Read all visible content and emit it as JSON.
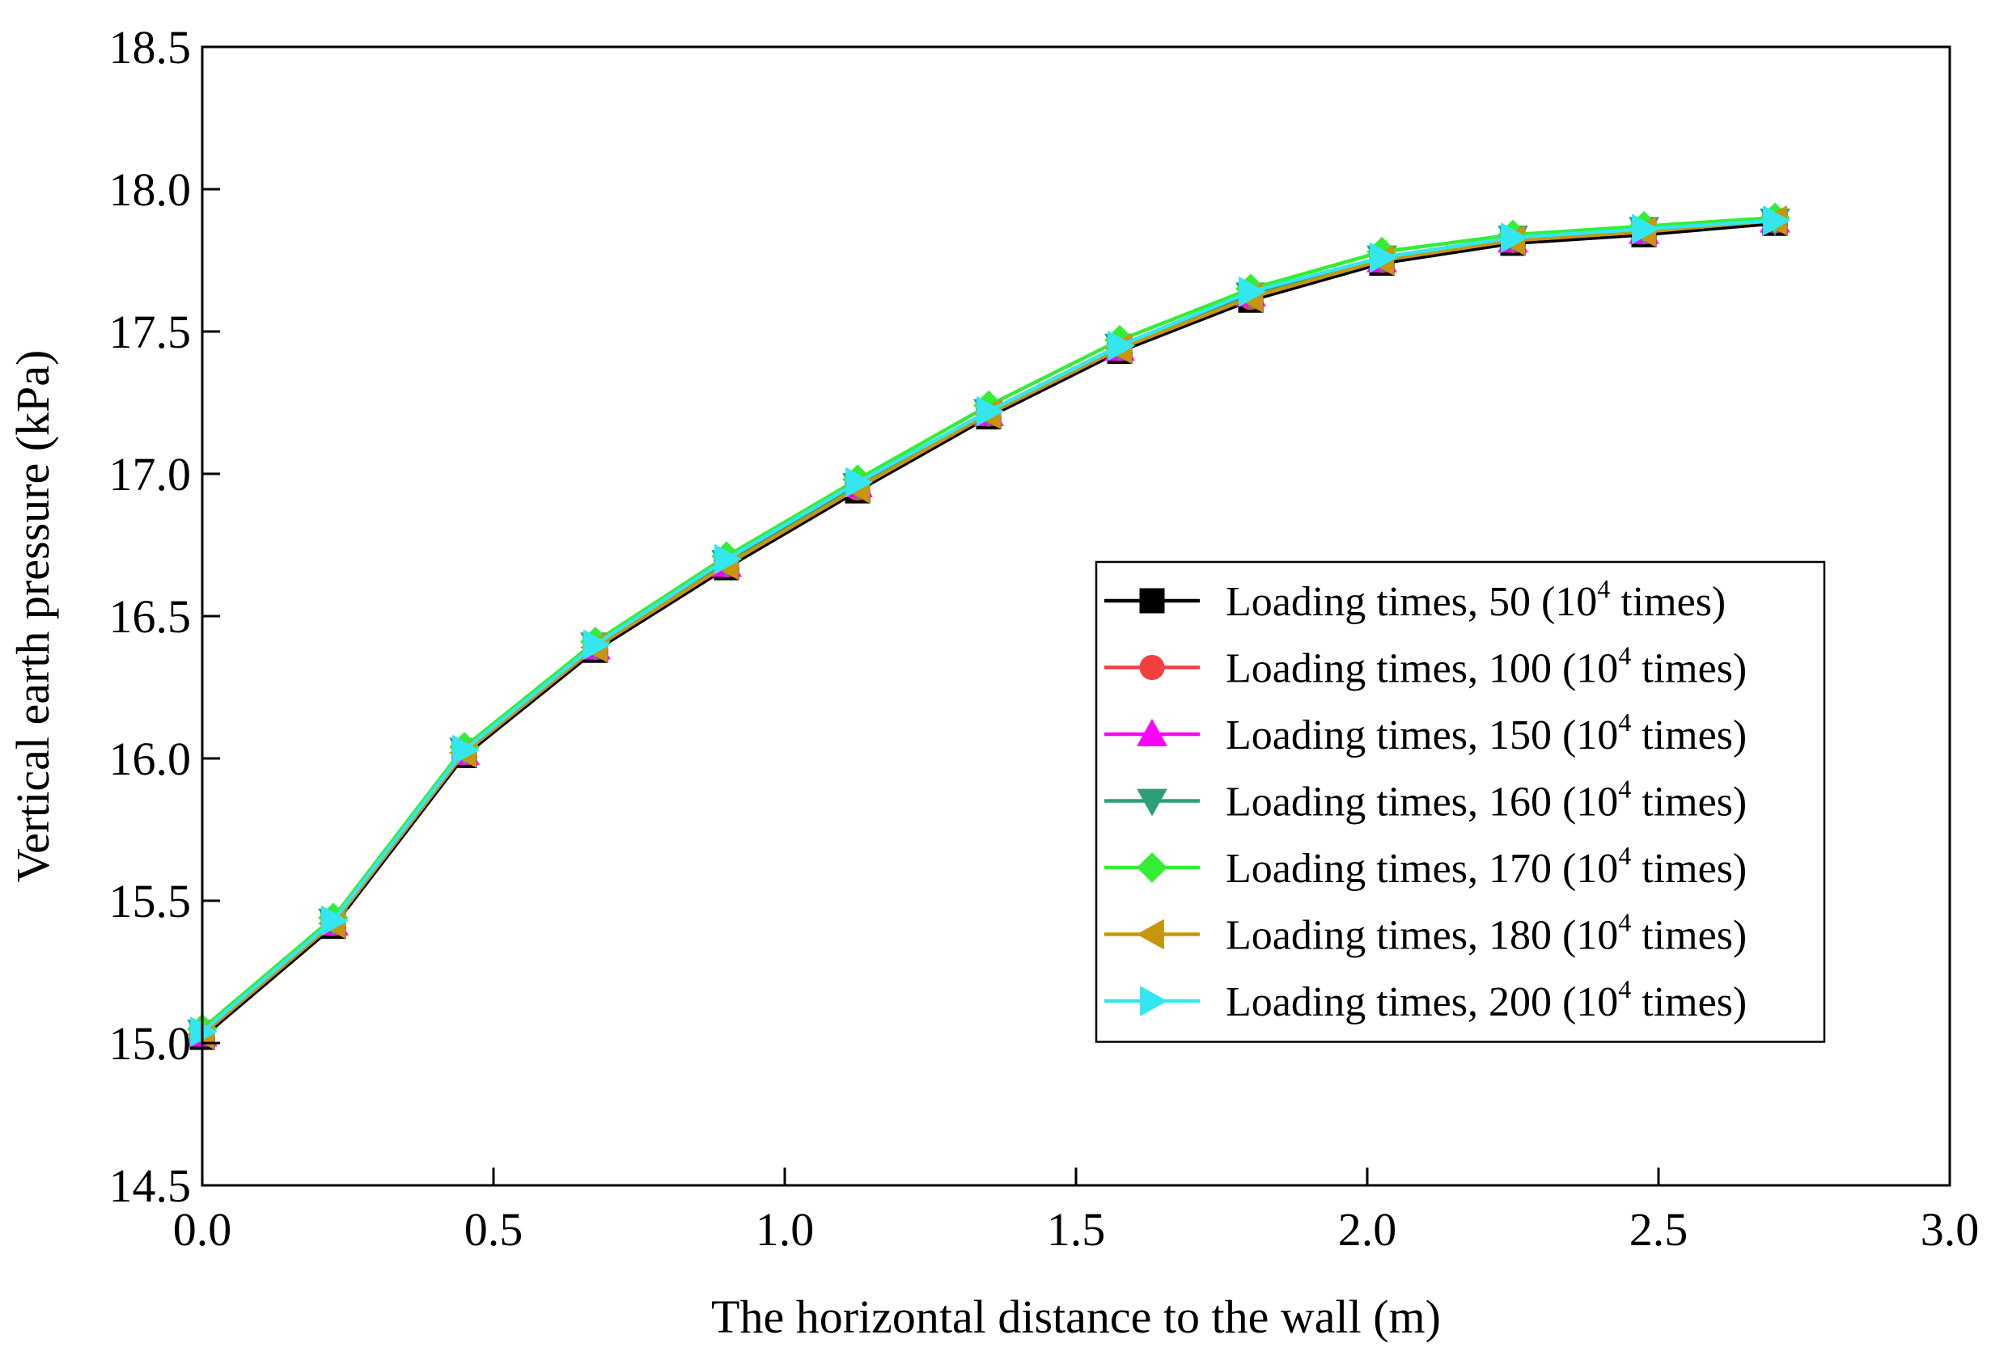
{
  "chart_data": {
    "type": "line",
    "title": "",
    "xlabel": "The horizontal distance to the wall (m)",
    "ylabel": "Vertical earth pressure (kPa)",
    "xlim": [
      0.0,
      3.0
    ],
    "ylim": [
      14.5,
      18.5
    ],
    "xticks": [
      "0.0",
      "0.5",
      "1.0",
      "1.5",
      "2.0",
      "2.5",
      "3.0"
    ],
    "yticks": [
      "14.5",
      "15.0",
      "15.5",
      "16.0",
      "16.5",
      "17.0",
      "17.5",
      "18.0",
      "18.5"
    ],
    "legend_position": "right-middle",
    "x": [
      0.0,
      0.225,
      0.45,
      0.675,
      0.9,
      1.125,
      1.35,
      1.575,
      1.8,
      2.025,
      2.25,
      2.475,
      2.7
    ],
    "series": [
      {
        "name": "Loading times, 50 (10",
        "name_sup": "4",
        "name_suffix": " times)",
        "color": "#000000",
        "marker": "square",
        "values": [
          15.02,
          15.41,
          16.01,
          16.38,
          16.67,
          16.94,
          17.2,
          17.43,
          17.61,
          17.74,
          17.81,
          17.84,
          17.88
        ]
      },
      {
        "name": "Loading times, 100 (10",
        "name_sup": "4",
        "name_suffix": " times)",
        "color": "#f04040",
        "marker": "circle",
        "values": [
          15.03,
          15.42,
          16.02,
          16.39,
          16.68,
          16.95,
          17.21,
          17.44,
          17.62,
          17.75,
          17.82,
          17.85,
          17.89
        ]
      },
      {
        "name": "Loading times, 150 (10",
        "name_sup": "4",
        "name_suffix": " times)",
        "color": "#ff00ff",
        "marker": "triangle-up",
        "values": [
          15.03,
          15.42,
          16.02,
          16.39,
          16.68,
          16.96,
          17.21,
          17.44,
          17.63,
          17.75,
          17.82,
          17.85,
          17.89
        ]
      },
      {
        "name": "Loading times, 160 (10",
        "name_sup": "4",
        "name_suffix": " times)",
        "color": "#2e9e7a",
        "marker": "triangle-down",
        "values": [
          15.04,
          15.43,
          16.03,
          16.4,
          16.69,
          16.96,
          17.22,
          17.45,
          17.63,
          17.76,
          17.83,
          17.86,
          17.89
        ]
      },
      {
        "name": "Loading times, 170 (10",
        "name_sup": "4",
        "name_suffix": " times)",
        "color": "#33ee33",
        "marker": "diamond",
        "values": [
          15.05,
          15.44,
          16.04,
          16.41,
          16.71,
          16.98,
          17.24,
          17.47,
          17.65,
          17.78,
          17.84,
          17.87,
          17.9
        ]
      },
      {
        "name": "Loading times, 180 (10",
        "name_sup": "4",
        "name_suffix": " times)",
        "color": "#c8960a",
        "marker": "triangle-left",
        "values": [
          15.03,
          15.42,
          16.02,
          16.39,
          16.68,
          16.95,
          17.21,
          17.44,
          17.62,
          17.75,
          17.82,
          17.85,
          17.89
        ]
      },
      {
        "name": "Loading times, 200 (10",
        "name_sup": "4",
        "name_suffix": " times)",
        "color": "#33e6f0",
        "marker": "triangle-right",
        "values": [
          15.04,
          15.43,
          16.03,
          16.4,
          16.7,
          16.97,
          17.22,
          17.45,
          17.64,
          17.76,
          17.83,
          17.86,
          17.89
        ]
      }
    ]
  }
}
